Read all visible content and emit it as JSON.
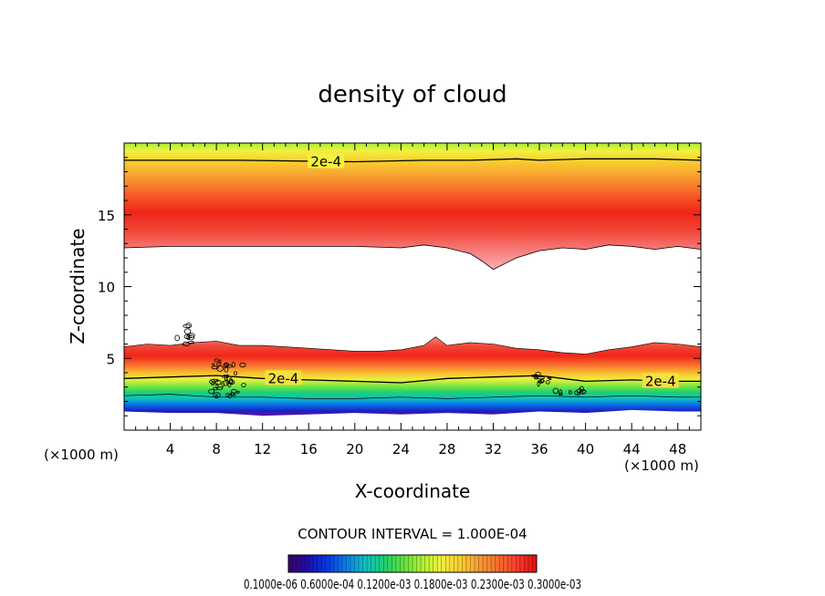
{
  "chart_data": {
    "type": "contour",
    "title": "density of cloud",
    "xlabel": "X-coordinate",
    "ylabel": "Z-coordinate",
    "x_unit": "(×1000 m)",
    "y_unit": "(×1000 m)",
    "xlim": [
      0,
      50
    ],
    "ylim": [
      0,
      20
    ],
    "x_ticks": [
      "4",
      "8",
      "12",
      "16",
      "20",
      "24",
      "28",
      "32",
      "36",
      "40",
      "44",
      "48"
    ],
    "y_ticks": [
      "5",
      "10",
      "15"
    ],
    "contour_interval": "CONTOUR INTERVAL = 1.000E-04",
    "contour_labels": [
      {
        "text": "2e-4",
        "x": 17.5,
        "z": 18.7
      },
      {
        "text": "2e-4",
        "x": 13.8,
        "z": 3.6
      },
      {
        "text": "2e-4",
        "x": 46.5,
        "z": 3.4
      }
    ],
    "upper_layer": {
      "top_z": 18.8,
      "peak_z": 14.8,
      "lower_edge": [
        [
          0,
          12.7
        ],
        [
          4,
          12.8
        ],
        [
          8,
          12.8
        ],
        [
          12,
          12.8
        ],
        [
          16,
          12.8
        ],
        [
          20,
          12.8
        ],
        [
          24,
          12.7
        ],
        [
          26,
          12.9
        ],
        [
          28,
          12.7
        ],
        [
          30,
          12.3
        ],
        [
          31,
          11.8
        ],
        [
          32,
          11.2
        ],
        [
          33,
          11.6
        ],
        [
          34,
          12.0
        ],
        [
          36,
          12.5
        ],
        [
          38,
          12.7
        ],
        [
          40,
          12.6
        ],
        [
          42,
          12.9
        ],
        [
          44,
          12.8
        ],
        [
          46,
          12.6
        ],
        [
          48,
          12.8
        ],
        [
          50,
          12.6
        ]
      ]
    },
    "lower_layer": {
      "top_edge": [
        [
          0,
          5.8
        ],
        [
          2,
          6.0
        ],
        [
          4,
          5.9
        ],
        [
          6,
          6.1
        ],
        [
          8,
          6.2
        ],
        [
          10,
          5.9
        ],
        [
          12,
          5.9
        ],
        [
          14,
          5.8
        ],
        [
          16,
          5.7
        ],
        [
          18,
          5.6
        ],
        [
          20,
          5.5
        ],
        [
          22,
          5.5
        ],
        [
          24,
          5.6
        ],
        [
          26,
          5.9
        ],
        [
          27,
          6.5
        ],
        [
          28,
          5.9
        ],
        [
          30,
          6.1
        ],
        [
          32,
          6.0
        ],
        [
          34,
          5.7
        ],
        [
          36,
          5.6
        ],
        [
          38,
          5.4
        ],
        [
          40,
          5.3
        ],
        [
          42,
          5.6
        ],
        [
          44,
          5.8
        ],
        [
          46,
          6.1
        ],
        [
          48,
          6.0
        ],
        [
          50,
          5.8
        ]
      ],
      "line_2e4": [
        [
          0,
          3.6
        ],
        [
          4,
          3.7
        ],
        [
          8,
          3.8
        ],
        [
          12,
          3.6
        ],
        [
          16,
          3.5
        ],
        [
          20,
          3.4
        ],
        [
          24,
          3.3
        ],
        [
          28,
          3.6
        ],
        [
          32,
          3.7
        ],
        [
          36,
          3.8
        ],
        [
          38,
          3.6
        ],
        [
          40,
          3.4
        ],
        [
          44,
          3.5
        ],
        [
          48,
          3.4
        ],
        [
          50,
          3.4
        ]
      ],
      "bottom_edge": [
        [
          0,
          1.3
        ],
        [
          4,
          1.2
        ],
        [
          8,
          1.2
        ],
        [
          12,
          1.0
        ],
        [
          16,
          1.1
        ],
        [
          20,
          1.2
        ],
        [
          24,
          1.1
        ],
        [
          28,
          1.2
        ],
        [
          32,
          1.1
        ],
        [
          36,
          1.3
        ],
        [
          40,
          1.2
        ],
        [
          44,
          1.4
        ],
        [
          48,
          1.3
        ],
        [
          50,
          1.3
        ]
      ]
    },
    "colorbar": {
      "labels": "0.1000e-06  0.6000e-04  0.1200e-03  0.1800e-03  0.2300e-03  0.3000e-03",
      "colors": [
        "#3a006e",
        "#1a10b0",
        "#0a3ae0",
        "#0a80e8",
        "#10c0c0",
        "#20d070",
        "#60e040",
        "#b0f030",
        "#f0f040",
        "#f8d030",
        "#f8a030",
        "#f87030",
        "#f84030",
        "#e81010"
      ]
    }
  }
}
